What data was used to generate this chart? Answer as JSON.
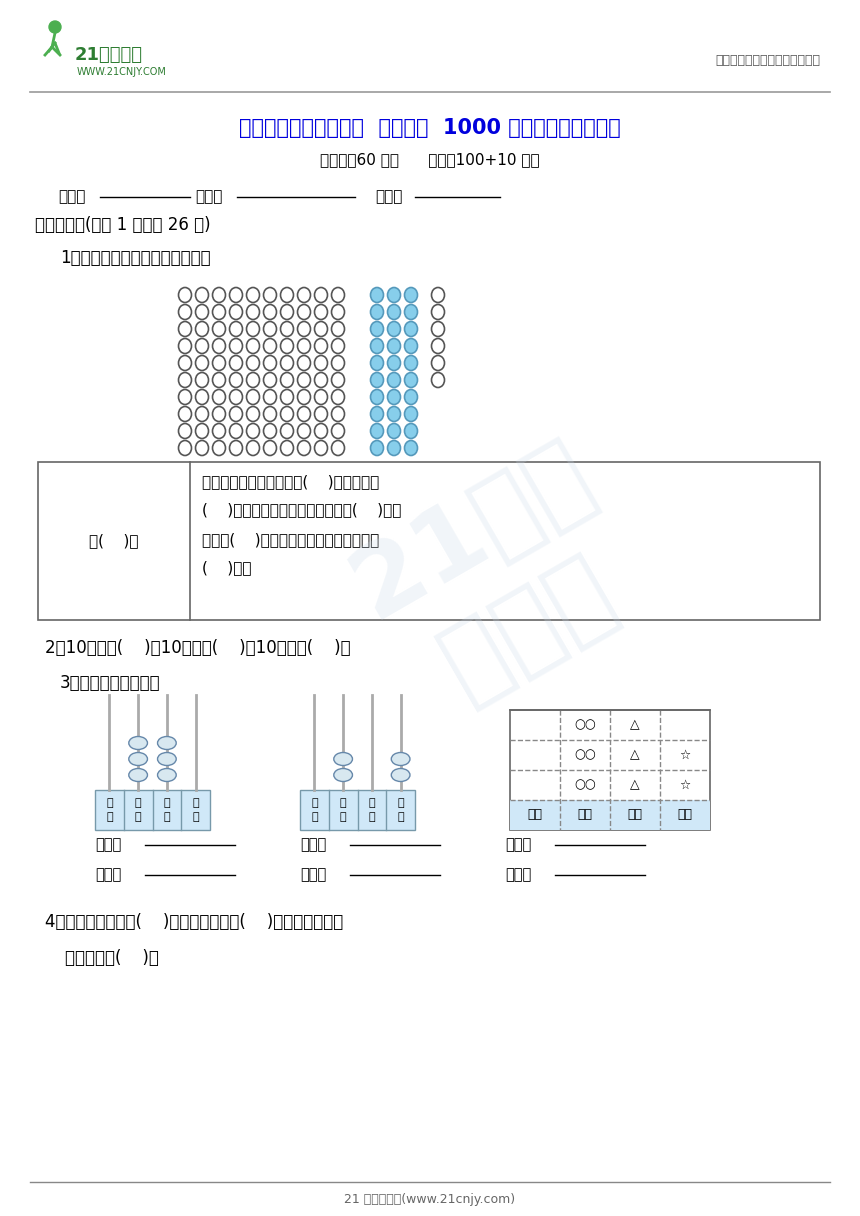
{
  "title_part1": "冀教版二年级数学下册  第三单元  ",
  "title_part2": "1000",
  "title_part3": " 以内数的读写及意义",
  "subtitle": "（时间：60 分钟      分数：100+10 分）",
  "header_right": "中小学教育资源及组卷应用平台",
  "logo_text": "21世纪教育",
  "logo_url": "WWW.21CNJY.COM",
  "section1": "一、填空。(每空 1 分，共 26 分)",
  "q1": "1．数一数，一共有多少枚棋子？",
  "q2": "2．10个一是(    )，10个十是(    )，10个百是(    )。",
  "q3": "3．写一写，读一读。",
  "q4_line1": "4．最小的四位数是(    )，它的最高位是(    )位，它和最大的",
  "q4_line2": "三位数相差(    )。",
  "table_left": "共(    )枚",
  "table_right_lines": [
    "左边部分十枚十枚地数有(    )个十枚，是",
    "(    )枚；中间部分十枚十枚地数有(    )个十",
    "枚，是(    )枚；右边部分一枚一枚地数是",
    "(    )枚。"
  ],
  "footer": "21 世纪教育网(www.21cnjy.com)",
  "bg_color": "#ffffff",
  "title_color": "#0000dd",
  "text_color": "#000000"
}
